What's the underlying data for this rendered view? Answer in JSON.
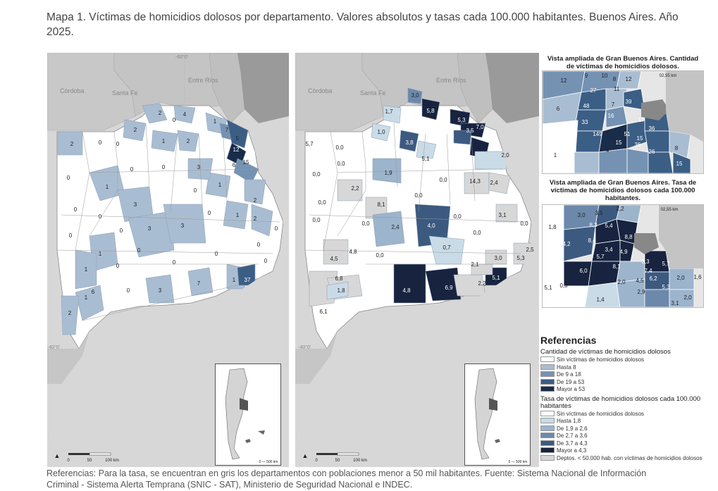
{
  "title": "Mapa 1. Víctimas de homicidios dolosos por departamento. Valores absolutos y tasas cada 100.000 habitantes. Buenos Aires. Año 2025.",
  "map_absolute": {
    "places": [
      "Córdoba",
      "Santa Fe",
      "Entre Ríos"
    ],
    "meridian": "-60°0'",
    "parallel": "-40°0'",
    "scale": [
      "0",
      "50",
      "100 km"
    ],
    "values": [
      {
        "v": "2"
      },
      {
        "v": "4"
      },
      {
        "v": "1"
      },
      {
        "v": "7"
      },
      {
        "v": "5"
      },
      {
        "v": "12"
      },
      {
        "v": "2"
      },
      {
        "v": "2"
      },
      {
        "v": "1"
      },
      {
        "v": "6"
      },
      {
        "v": "2"
      },
      {
        "v": "15"
      },
      {
        "v": "1"
      },
      {
        "v": "3"
      },
      {
        "v": "1"
      },
      {
        "v": "3"
      },
      {
        "v": "3"
      },
      {
        "v": "1"
      },
      {
        "v": "2"
      },
      {
        "v": "1"
      },
      {
        "v": "1"
      },
      {
        "v": "3"
      },
      {
        "v": "1"
      },
      {
        "v": "37"
      },
      {
        "v": "7"
      },
      {
        "v": "2"
      },
      {
        "v": "3"
      },
      {
        "v": "1"
      },
      {
        "v": "6"
      },
      {
        "v": "2"
      },
      {
        "v": "0"
      },
      {
        "v": "0"
      },
      {
        "v": "0"
      },
      {
        "v": "0"
      },
      {
        "v": "0"
      },
      {
        "v": "0"
      },
      {
        "v": "0"
      },
      {
        "v": "0"
      },
      {
        "v": "0"
      },
      {
        "v": "0"
      },
      {
        "v": "0"
      },
      {
        "v": "0"
      },
      {
        "v": "0"
      },
      {
        "v": "0"
      },
      {
        "v": "0"
      },
      {
        "v": "0"
      },
      {
        "v": "0"
      },
      {
        "v": "0"
      },
      {
        "v": "0"
      },
      {
        "v": "0"
      }
    ]
  },
  "map_rate": {
    "places": [
      "Córdoba",
      "Santa Fe",
      "Entre Ríos"
    ],
    "parallel": "-40°0'",
    "scale": [
      "0",
      "50",
      "100 km"
    ],
    "values": [
      {
        "v": "3,0"
      },
      {
        "v": "1,7"
      },
      {
        "v": "5,8"
      },
      {
        "v": "5,3"
      },
      {
        "v": "3,5"
      },
      {
        "v": "7,0"
      },
      {
        "v": "1,0"
      },
      {
        "v": "3,8"
      },
      {
        "v": "5,7"
      },
      {
        "v": "5,1"
      },
      {
        "v": "1,9"
      },
      {
        "v": "2,2"
      },
      {
        "v": "8,1"
      },
      {
        "v": "2,4"
      },
      {
        "v": "4,0"
      },
      {
        "v": "0,7"
      },
      {
        "v": "4,8"
      },
      {
        "v": "4,5"
      },
      {
        "v": "6,8"
      },
      {
        "v": "1,8"
      },
      {
        "v": "6,1"
      },
      {
        "v": "4,8"
      },
      {
        "v": "6,9"
      },
      {
        "v": "2,2"
      },
      {
        "v": "5,1"
      },
      {
        "v": "2,1"
      },
      {
        "v": "3,0"
      },
      {
        "v": "5,3"
      },
      {
        "v": "2,5"
      },
      {
        "v": "3,1"
      },
      {
        "v": "14,3"
      },
      {
        "v": "2,4"
      },
      {
        "v": "2,0"
      },
      {
        "v": "0,0"
      },
      {
        "v": "0,0"
      },
      {
        "v": "0,0"
      },
      {
        "v": "0,0"
      },
      {
        "v": "0,0"
      },
      {
        "v": "0,0"
      },
      {
        "v": "0,0"
      },
      {
        "v": "0,0"
      },
      {
        "v": "0,0"
      },
      {
        "v": "0,0"
      },
      {
        "v": "0,0"
      },
      {
        "v": "0,0"
      }
    ]
  },
  "zoom_absolute": {
    "title": "Vista ampliada de Gran Buenos Aires. Cantidad de víctimas de homicidios dolosos.",
    "scale": "02,55 km",
    "values": [
      "12",
      "9",
      "10",
      "8",
      "12",
      "27",
      "11",
      "48",
      "6",
      "7",
      "39",
      "33",
      "16",
      "17",
      "149",
      "51",
      "15",
      "36",
      "4",
      "15",
      "36",
      "26",
      "8",
      "15",
      "1"
    ]
  },
  "zoom_rate": {
    "title": "Vista ampliada de Gran Buenos Aires. Tasa de víctimas de homicidios dolosos cada 100.000 habitantes.",
    "scale": "02,55 km",
    "values": [
      "3,0",
      "3,5",
      "2,2",
      "1,8",
      "8,3",
      "5,4",
      "4,2",
      "8,4",
      "8,8",
      "3,4",
      "4,9",
      "6,0",
      "5,7",
      "8,1",
      "3,3",
      "5,7",
      "2,0",
      "7,4",
      "6,2",
      "2,0",
      "4,5",
      "5,3",
      "2,9",
      "3,1",
      "1,4",
      "5,1",
      "1,6",
      "2,0",
      "0,0"
    ]
  },
  "legend": {
    "title": "Referencias",
    "abs_title": "Cantidad de víctimas de homicidios dolosos",
    "abs_items": [
      {
        "label": "Sin víctimas de homicidios dolosos",
        "color": "#ffffff"
      },
      {
        "label": "Hasta 8",
        "color": "#a9bdd2"
      },
      {
        "label": "De 9 a 18",
        "color": "#7592b3"
      },
      {
        "label": "De 19 a 53",
        "color": "#3b5e85"
      },
      {
        "label": "Mayor a 53",
        "color": "#192c4a"
      }
    ],
    "rate_title": "Tasa de víctimas de homicidios dolosos cada 100.000 habitantes",
    "rate_items": [
      {
        "label": "Sin víctimas de homicidios dolosos",
        "color": "#ffffff"
      },
      {
        "label": "Hasta 1,8",
        "color": "#c9dbe7"
      },
      {
        "label": "De 1,9 a 2,6",
        "color": "#9cb4cc"
      },
      {
        "label": "De 2,7 a 3,6",
        "color": "#6c89ab"
      },
      {
        "label": "De 3,7 a 4,3",
        "color": "#3c5a80"
      },
      {
        "label": "Mayor a 4,3",
        "color": "#17233f"
      },
      {
        "label": "Deptos. < 50.000 hab. con víctimas de homicidios dolosos",
        "color": "#d7d7d7"
      }
    ]
  },
  "footnote": "Referencias: Para la tasa, se encuentran en gris los departamentos con poblaciones menor a 50 mil habitantes. Fuente: Sistema Nacional de Información Criminal - Sistema Alerta Temprana (SNIC - SAT), Ministerio de Seguridad Nacional e INDEC."
}
